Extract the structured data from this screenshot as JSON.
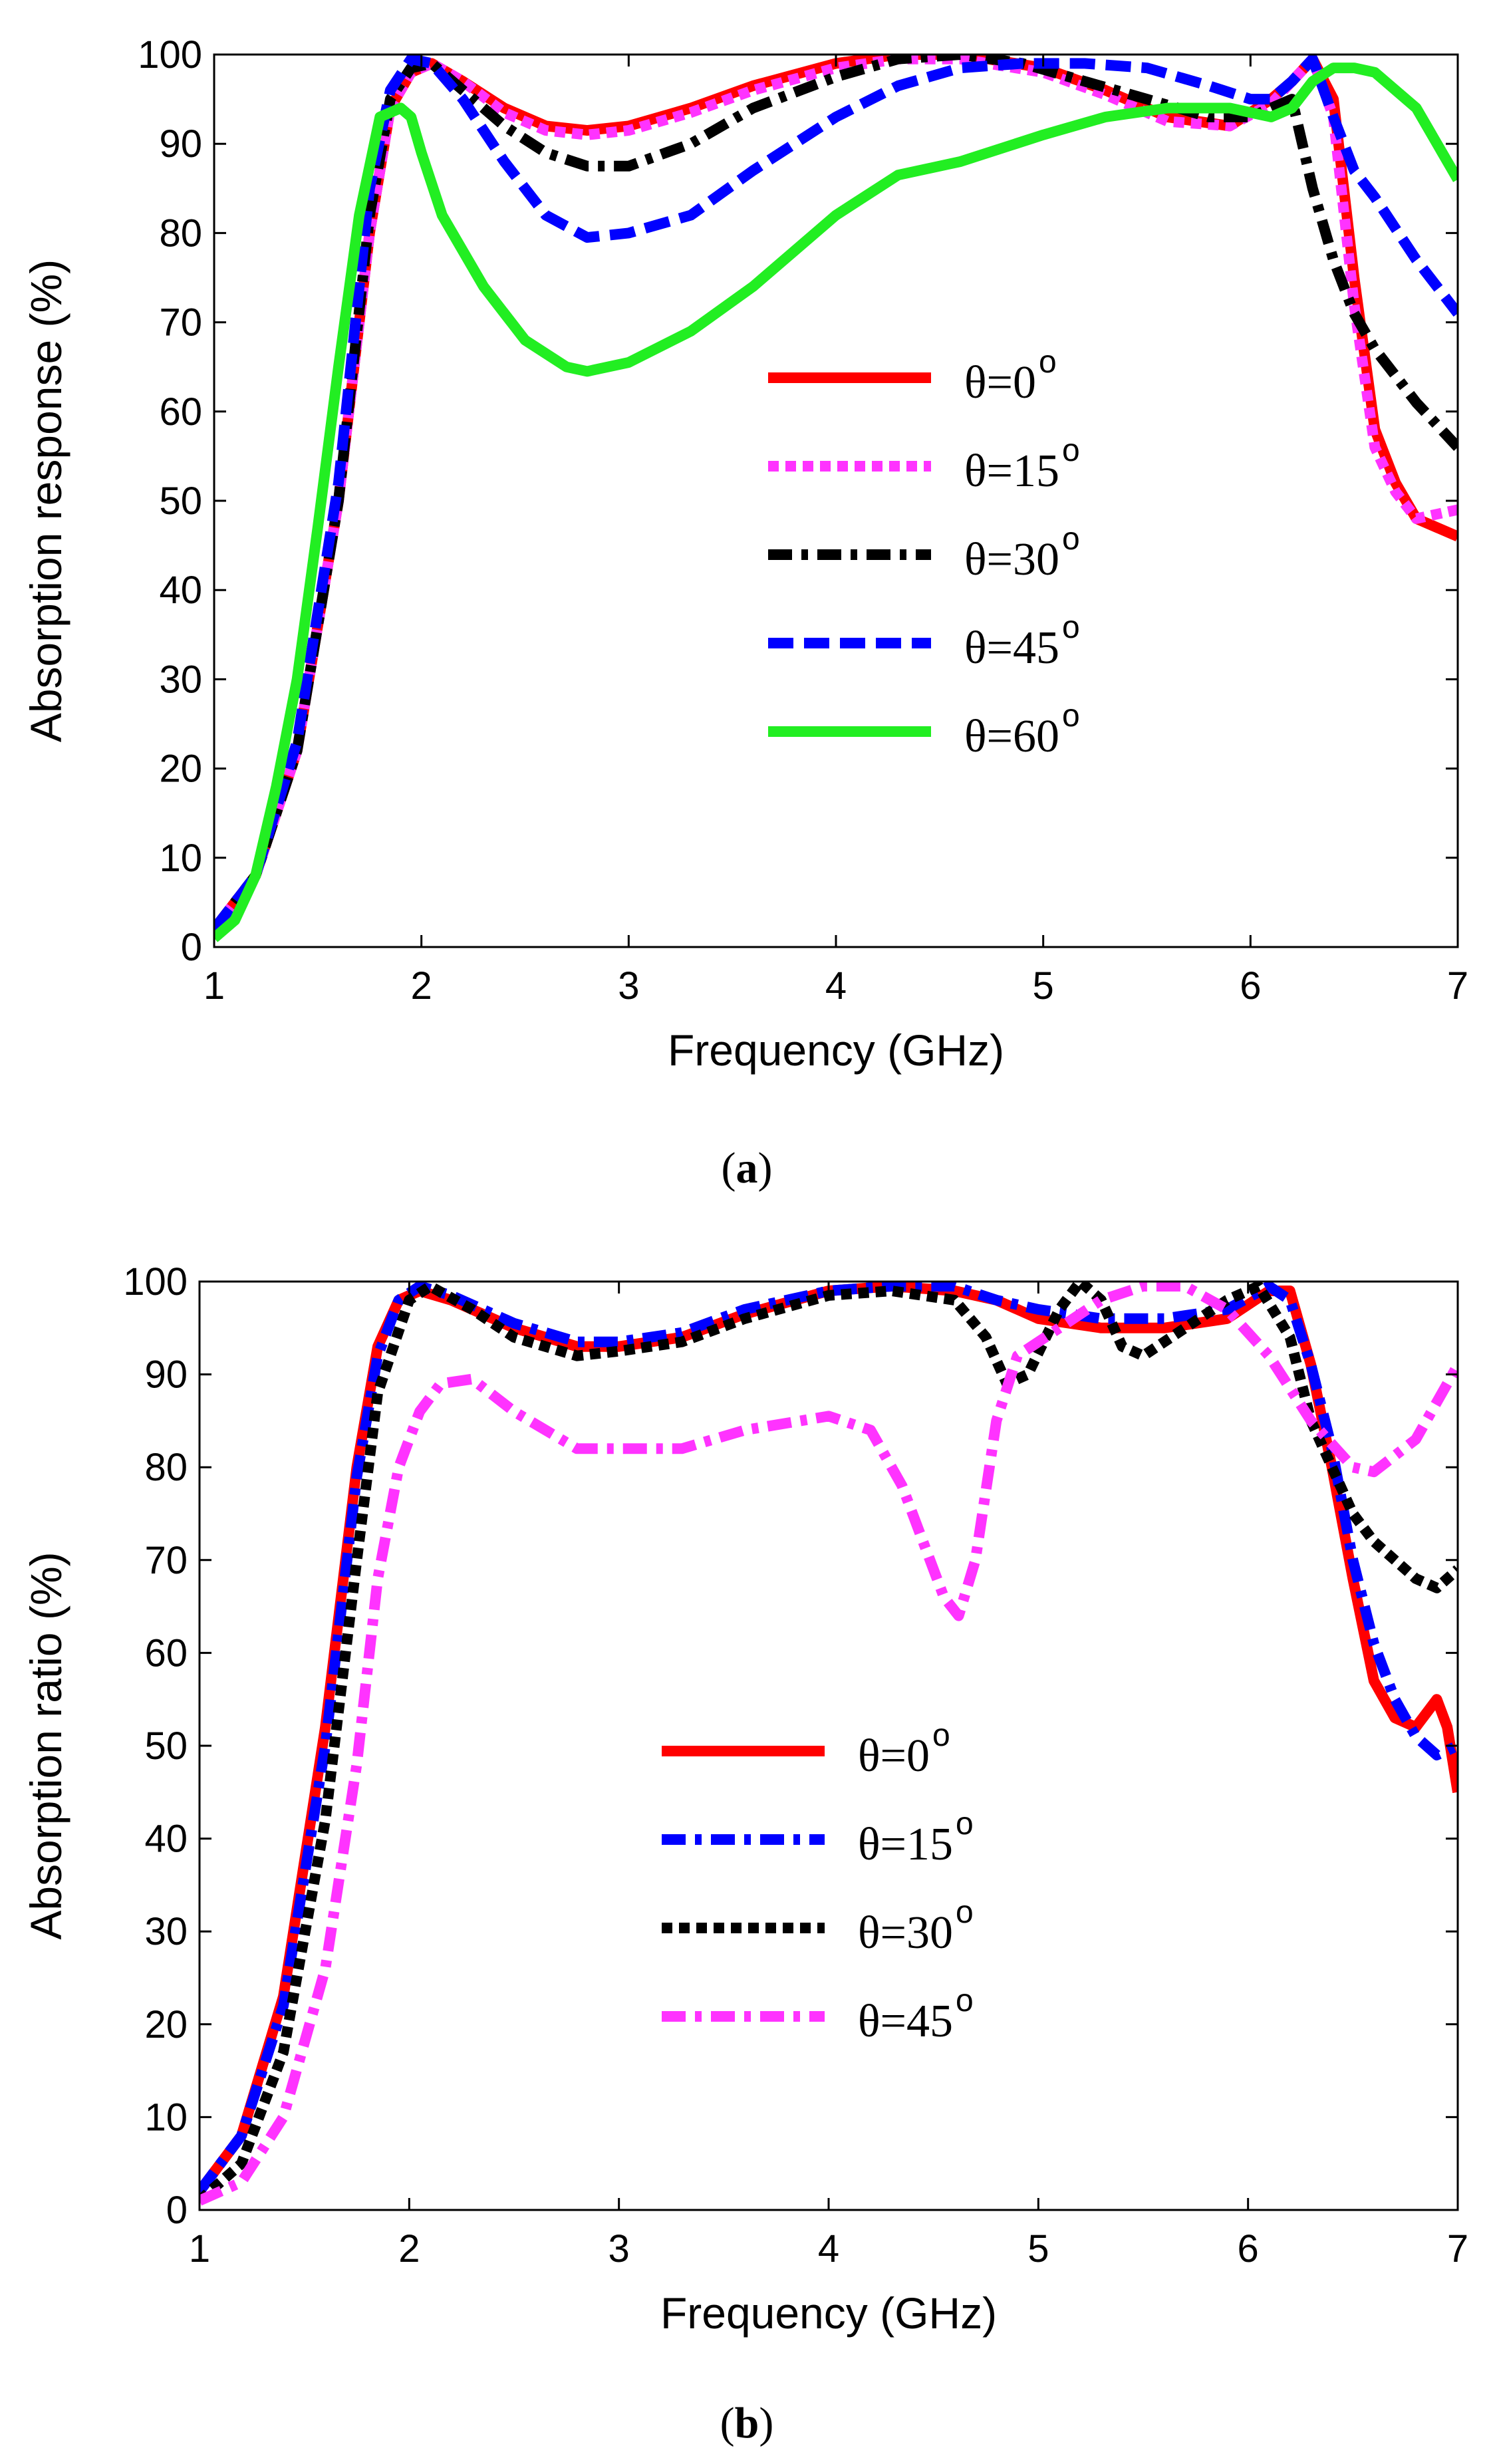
{
  "figure": {
    "panels": [
      {
        "caption_open": "(",
        "caption_letter": "a",
        "caption_close": ")"
      },
      {
        "caption_open": "(",
        "caption_letter": "b",
        "caption_close": ")"
      }
    ]
  },
  "chart_data": [
    {
      "type": "line",
      "title": "",
      "xlabel": "Frequency (GHz)",
      "ylabel": "Absorption response (%)",
      "xlim": [
        1,
        7
      ],
      "ylim": [
        0,
        100
      ],
      "xticks": [
        1,
        2,
        3,
        4,
        5,
        6,
        7
      ],
      "yticks": [
        0,
        10,
        20,
        30,
        40,
        50,
        60,
        70,
        80,
        90,
        100
      ],
      "legend_position": "center-right",
      "series": [
        {
          "name": "θ=0",
          "sup": "o",
          "color": "#ff0000",
          "style": "solid",
          "x": [
            1.0,
            1.2,
            1.4,
            1.6,
            1.75,
            1.85,
            1.95,
            2.05,
            2.2,
            2.4,
            2.6,
            2.8,
            3.0,
            3.3,
            3.6,
            4.0,
            4.3,
            4.6,
            5.0,
            5.3,
            5.6,
            5.9,
            6.1,
            6.2,
            6.3,
            6.4,
            6.5,
            6.6,
            6.7,
            6.8,
            7.0
          ],
          "y": [
            2,
            8,
            22,
            50,
            80,
            94,
            98,
            99,
            97,
            94,
            92,
            91.5,
            92,
            94,
            96.5,
            99,
            100,
            100,
            98.5,
            96,
            93,
            92,
            95,
            97,
            99.5,
            95,
            75,
            58,
            52,
            48,
            46
          ]
        },
        {
          "name": "θ=15",
          "sup": "o",
          "color": "#ff33ff",
          "style": "dotted",
          "x": [
            1.0,
            1.2,
            1.4,
            1.6,
            1.75,
            1.85,
            1.95,
            2.05,
            2.2,
            2.4,
            2.6,
            2.8,
            3.0,
            3.3,
            3.6,
            4.0,
            4.3,
            4.6,
            5.0,
            5.3,
            5.6,
            5.9,
            6.1,
            6.2,
            6.3,
            6.4,
            6.5,
            6.6,
            6.7,
            6.8,
            7.0
          ],
          "y": [
            2,
            8,
            22,
            50,
            80,
            94,
            98,
            99,
            97,
            93.5,
            91.5,
            91,
            91.5,
            93.5,
            96,
            98.5,
            99.5,
            99.5,
            98,
            95.5,
            92.5,
            92,
            94.5,
            97,
            99.5,
            93,
            72,
            56,
            51,
            48,
            49
          ]
        },
        {
          "name": "θ=30",
          "sup": "o",
          "color": "#000000",
          "style": "dashdot",
          "x": [
            1.0,
            1.2,
            1.4,
            1.6,
            1.75,
            1.85,
            1.95,
            2.05,
            2.2,
            2.4,
            2.6,
            2.8,
            3.0,
            3.3,
            3.6,
            4.0,
            4.3,
            4.6,
            4.9,
            5.2,
            5.5,
            5.8,
            6.0,
            6.1,
            6.2,
            6.3,
            6.4,
            6.5,
            6.6,
            6.8,
            7.0
          ],
          "y": [
            2,
            8,
            22,
            50,
            82,
            95,
            98.5,
            99,
            96,
            92,
            89,
            87.5,
            87.5,
            90,
            94,
            97.5,
            99.5,
            100,
            99,
            97,
            95,
            93,
            93,
            94,
            95,
            85,
            77,
            71,
            67,
            61,
            56
          ]
        },
        {
          "name": "θ=45",
          "sup": "o",
          "color": "#0000ff",
          "style": "dashed",
          "x": [
            1.0,
            1.2,
            1.4,
            1.6,
            1.75,
            1.85,
            1.95,
            2.05,
            2.2,
            2.4,
            2.6,
            2.8,
            3.0,
            3.3,
            3.6,
            4.0,
            4.3,
            4.6,
            4.9,
            5.2,
            5.5,
            5.8,
            6.0,
            6.1,
            6.2,
            6.3,
            6.4,
            6.5,
            6.6,
            6.8,
            7.0
          ],
          "y": [
            2,
            8,
            23,
            52,
            85,
            96,
            99.5,
            99,
            95,
            88,
            82,
            79.5,
            80,
            82,
            87,
            93,
            96.5,
            98.5,
            99,
            99,
            98.5,
            96.5,
            95,
            95,
            97,
            99.5,
            93,
            87,
            84,
            77,
            71
          ]
        },
        {
          "name": "θ=60",
          "sup": "o",
          "color": "#22ee22",
          "style": "solid",
          "x": [
            1.0,
            1.1,
            1.2,
            1.3,
            1.4,
            1.5,
            1.6,
            1.7,
            1.8,
            1.9,
            1.95,
            2.0,
            2.1,
            2.3,
            2.5,
            2.7,
            2.8,
            3.0,
            3.3,
            3.6,
            4.0,
            4.3,
            4.6,
            5.0,
            5.3,
            5.6,
            5.9,
            6.1,
            6.2,
            6.3,
            6.4,
            6.5,
            6.6,
            6.8,
            7.0
          ],
          "y": [
            1,
            3,
            8,
            18,
            30,
            47,
            65,
            82,
            93,
            94,
            93,
            89,
            82,
            74,
            68,
            65,
            64.5,
            65.5,
            69,
            74,
            82,
            86.5,
            88,
            91,
            93,
            94,
            94,
            93,
            94,
            97,
            98.5,
            98.5,
            98,
            94,
            86
          ]
        }
      ]
    },
    {
      "type": "line",
      "title": "",
      "xlabel": "Frequency (GHz)",
      "ylabel": "Absorption ratio (%)",
      "xlim": [
        1,
        7
      ],
      "ylim": [
        0,
        100
      ],
      "xticks": [
        1,
        2,
        3,
        4,
        5,
        6,
        7
      ],
      "yticks": [
        0,
        10,
        20,
        30,
        40,
        50,
        60,
        70,
        80,
        90,
        100
      ],
      "legend_position": "center",
      "series": [
        {
          "name": "θ=0",
          "sup": "o",
          "color": "#ff0000",
          "style": "solid",
          "x": [
            1.0,
            1.2,
            1.4,
            1.6,
            1.75,
            1.85,
            1.95,
            2.05,
            2.2,
            2.5,
            2.8,
            3.0,
            3.3,
            3.6,
            4.0,
            4.3,
            4.6,
            4.8,
            5.0,
            5.3,
            5.6,
            5.9,
            6.1,
            6.2,
            6.3,
            6.4,
            6.5,
            6.6,
            6.7,
            6.8,
            6.9,
            6.95,
            7.0
          ],
          "y": [
            2,
            8,
            23,
            52,
            80,
            93,
            98,
            99,
            98,
            95,
            93,
            93,
            94,
            96.5,
            99,
            99.5,
            99,
            98,
            96,
            95,
            95,
            96,
            99,
            99,
            91,
            80,
            68,
            57,
            53,
            52,
            55,
            52,
            45
          ]
        },
        {
          "name": "θ=15",
          "sup": "o",
          "color": "#0000ff",
          "style": "dashdot",
          "x": [
            1.0,
            1.2,
            1.4,
            1.6,
            1.75,
            1.85,
            1.95,
            2.05,
            2.2,
            2.5,
            2.8,
            3.0,
            3.3,
            3.6,
            4.0,
            4.3,
            4.6,
            4.8,
            5.0,
            5.3,
            5.6,
            5.9,
            6.1,
            6.2,
            6.3,
            6.4,
            6.5,
            6.6,
            6.7,
            6.8,
            6.9,
            7.0
          ],
          "y": [
            2,
            8,
            22,
            50,
            79,
            92,
            98,
            99.5,
            98.5,
            95.5,
            93.5,
            93.5,
            94.5,
            97,
            99,
            99.5,
            99.5,
            98,
            97,
            96,
            96,
            97,
            99.5,
            98,
            91,
            82,
            70,
            61,
            55,
            51,
            49,
            50
          ]
        },
        {
          "name": "θ=30",
          "sup": "o",
          "color": "#000000",
          "style": "dotted",
          "x": [
            1.0,
            1.2,
            1.4,
            1.6,
            1.75,
            1.85,
            2.0,
            2.1,
            2.3,
            2.5,
            2.8,
            3.0,
            3.3,
            3.6,
            4.0,
            4.3,
            4.6,
            4.75,
            4.85,
            4.95,
            5.1,
            5.2,
            5.3,
            5.4,
            5.5,
            5.7,
            5.9,
            6.05,
            6.2,
            6.3,
            6.4,
            6.5,
            6.6,
            6.8,
            6.9,
            7.0
          ],
          "y": [
            1,
            5,
            17,
            42,
            70,
            88,
            98,
            99.5,
            97,
            94,
            92,
            92.5,
            93.5,
            96,
            98.5,
            99,
            98,
            94,
            89,
            90,
            97,
            100,
            98,
            93,
            92,
            95,
            98,
            99.5,
            94,
            85,
            80,
            75,
            72,
            68,
            67,
            69
          ]
        },
        {
          "name": "θ=45",
          "sup": "o",
          "color": "#ff33ff",
          "style": "dashdot",
          "x": [
            1.0,
            1.2,
            1.4,
            1.6,
            1.75,
            1.85,
            1.95,
            2.05,
            2.15,
            2.3,
            2.5,
            2.8,
            3.0,
            3.3,
            3.6,
            4.0,
            4.2,
            4.35,
            4.45,
            4.55,
            4.62,
            4.7,
            4.8,
            4.9,
            5.1,
            5.3,
            5.5,
            5.7,
            5.9,
            6.1,
            6.3,
            6.5,
            6.6,
            6.8,
            7.0
          ],
          "y": [
            1,
            3,
            10,
            26,
            48,
            68,
            80,
            86,
            89,
            89.5,
            86,
            82,
            82,
            82,
            84,
            85.5,
            84,
            78,
            72,
            66,
            64,
            70,
            85,
            92,
            95,
            98,
            99.5,
            99.5,
            97,
            92,
            85,
            80,
            79.5,
            83,
            91
          ]
        }
      ]
    }
  ]
}
